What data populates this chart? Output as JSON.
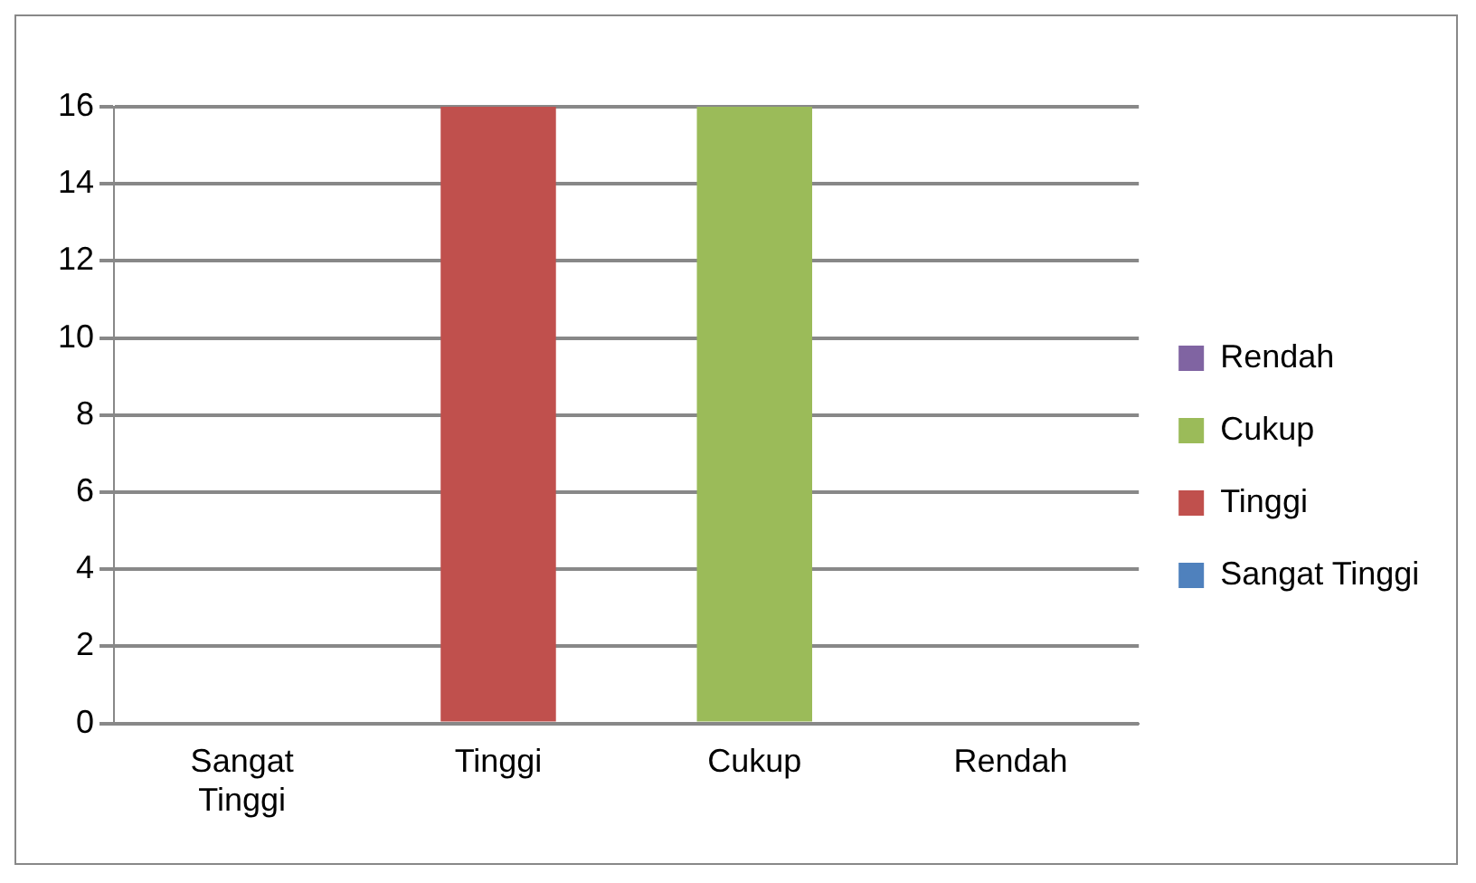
{
  "chart_data": {
    "type": "bar",
    "categories": [
      "Sangat Tinggi",
      "Tinggi",
      "Cukup",
      "Rendah"
    ],
    "series": [
      {
        "name": "Sangat Tinggi",
        "color": "#4f81bd",
        "values": [
          0,
          null,
          null,
          null
        ]
      },
      {
        "name": "Tinggi",
        "color": "#c0504d",
        "values": [
          null,
          16,
          null,
          null
        ]
      },
      {
        "name": "Cukup",
        "color": "#9bbb59",
        "values": [
          null,
          null,
          16,
          null
        ]
      },
      {
        "name": "Rendah",
        "color": "#8064a2",
        "values": [
          null,
          null,
          null,
          0
        ]
      }
    ],
    "ylim": [
      0,
      16
    ],
    "yticks": [
      0,
      2,
      4,
      6,
      8,
      10,
      12,
      14,
      16
    ],
    "grid": "y",
    "legend": "right"
  }
}
